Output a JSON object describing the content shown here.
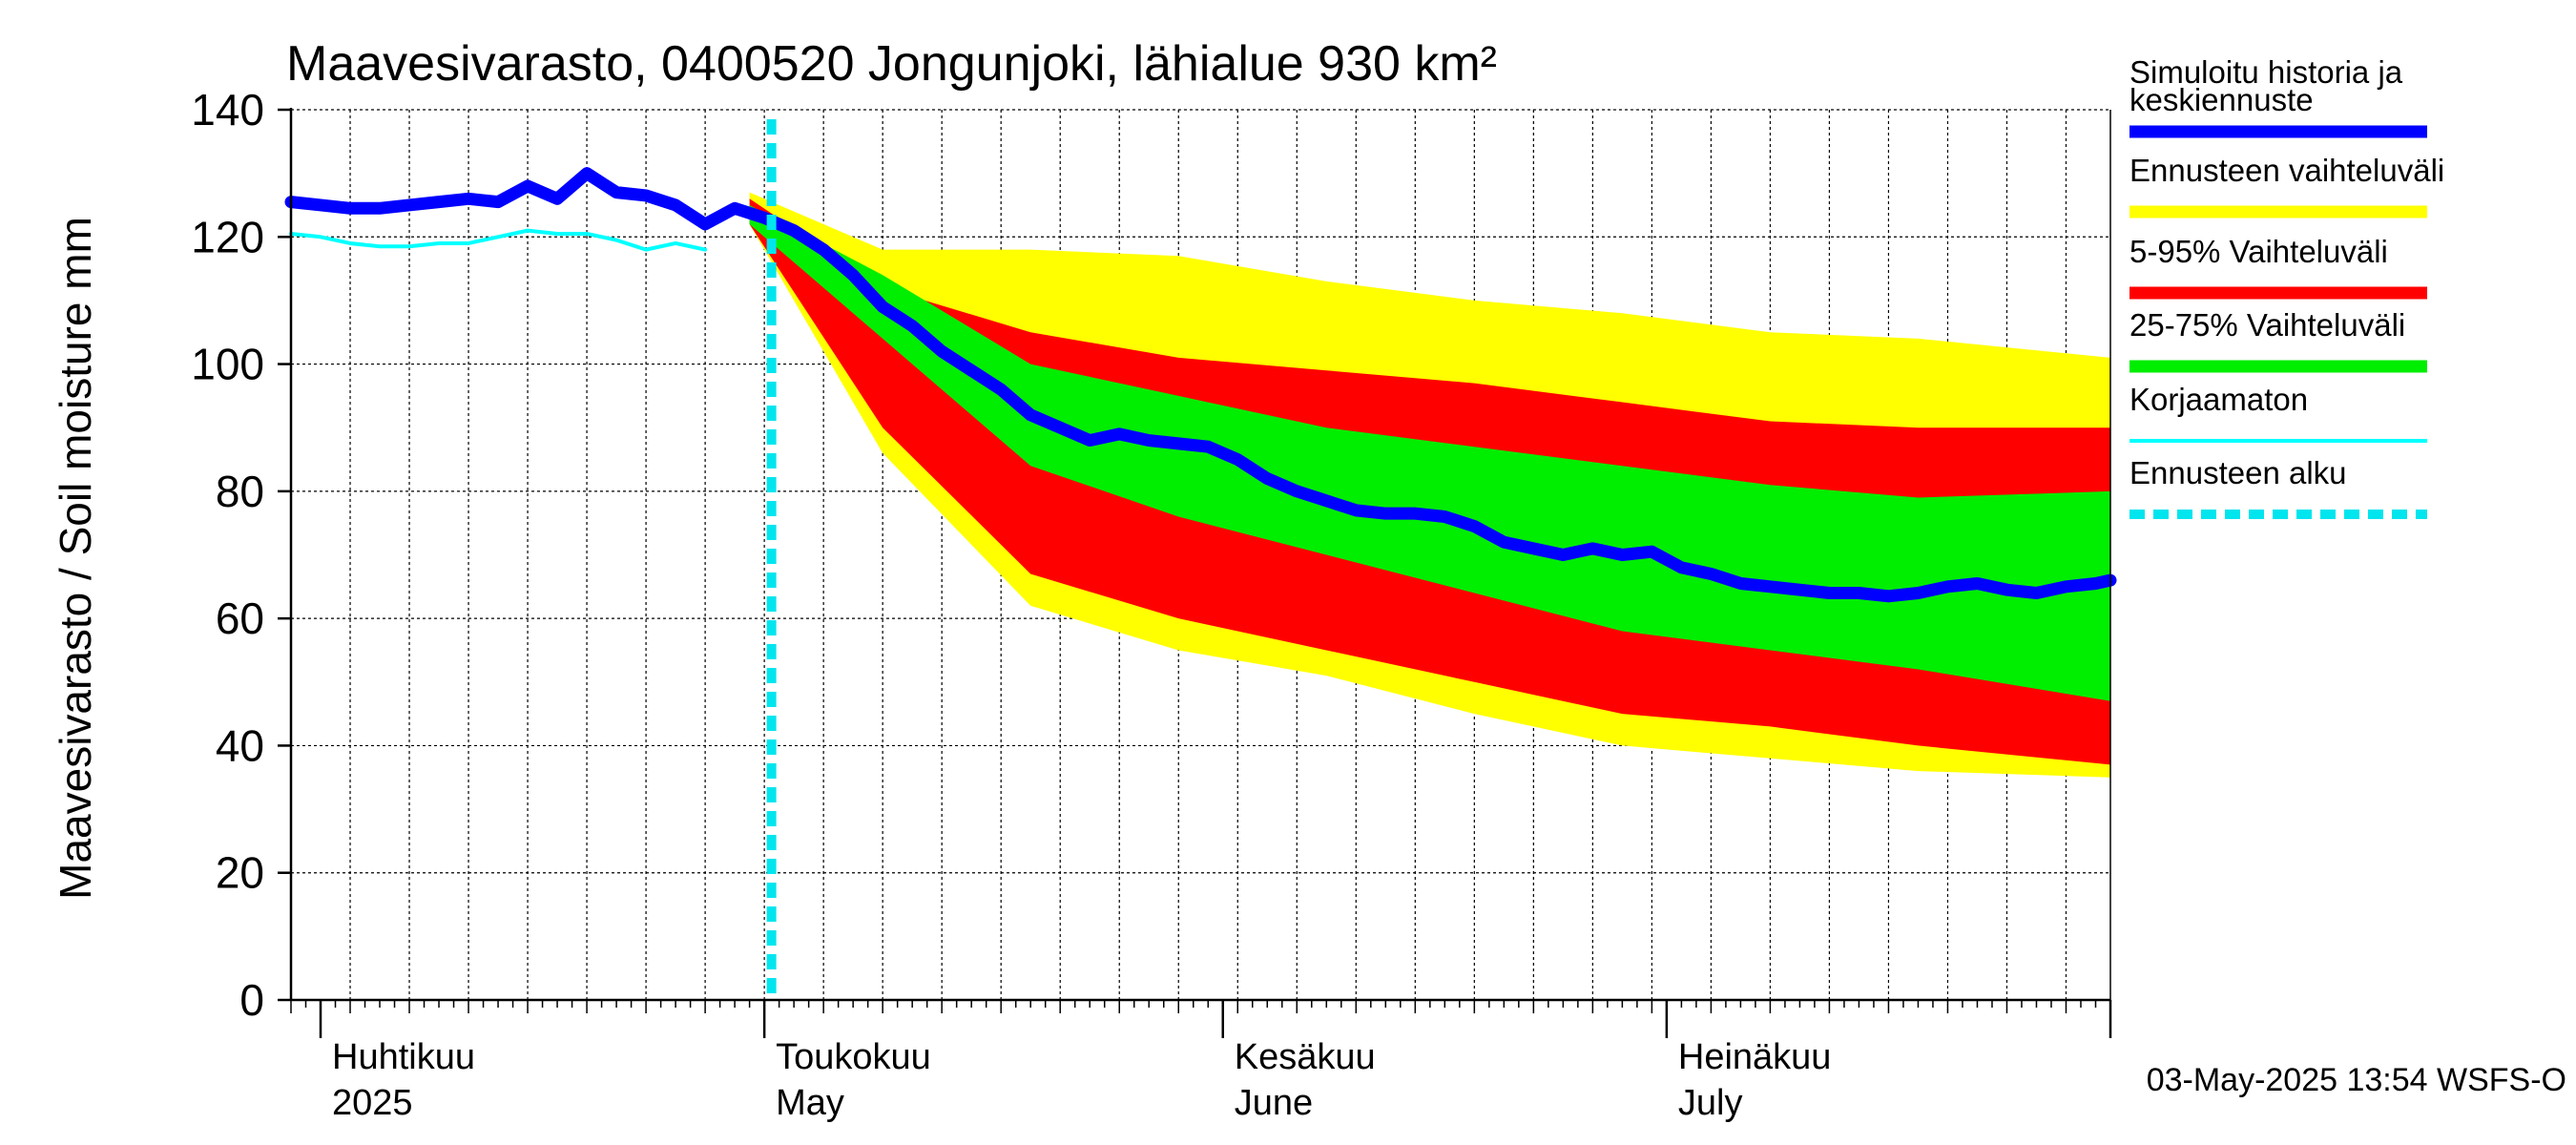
{
  "chart_data": {
    "type": "area",
    "title": "Maavesivarasto, 0400520 Jongunjoki, lähialue 930 km²",
    "ylabel": "Maavesivarasto / Soil moisture   mm",
    "ylim": [
      0,
      140
    ],
    "yticks": [
      0,
      20,
      40,
      60,
      80,
      100,
      120,
      140
    ],
    "x_start": "2025-03-30",
    "x_end": "2025-07-31",
    "forecast_start": "2025-05-02",
    "month_labels": [
      {
        "fi": "Huhtikuu",
        "en": "2025",
        "date": "2025-04-01"
      },
      {
        "fi": "Toukokuu",
        "en": "May",
        "date": "2025-05-01"
      },
      {
        "fi": "Kesäkuu",
        "en": "June",
        "date": "2025-06-01"
      },
      {
        "fi": "Heinäkuu",
        "en": "July",
        "date": "2025-07-01"
      }
    ],
    "series": [
      {
        "name": "Simuloitu historia ja keskiennuste",
        "color": "#0000ff",
        "day": [
          0,
          2,
          4,
          6,
          8,
          10,
          12,
          14,
          16,
          18,
          20,
          22,
          24,
          26,
          28,
          30,
          32,
          34,
          36,
          38,
          40,
          42,
          44,
          46,
          48,
          50,
          52,
          54,
          56,
          58,
          60,
          62,
          64,
          66,
          68,
          70,
          72,
          74,
          76,
          78,
          80,
          82,
          84,
          86,
          88,
          90,
          92,
          94,
          96,
          98,
          100,
          102,
          104,
          106,
          108,
          110,
          112,
          114,
          116,
          118,
          120,
          122,
          123
        ],
        "values": [
          125.5,
          125,
          124.5,
          124.5,
          125,
          125.5,
          126,
          125.5,
          128,
          126,
          130,
          127,
          126.5,
          125,
          122,
          124.5,
          123,
          121,
          118,
          114,
          109,
          106,
          102,
          99,
          96,
          92,
          90,
          88,
          89,
          88,
          87.5,
          87,
          85,
          82,
          80,
          78.5,
          77,
          76.5,
          76.5,
          76,
          74.5,
          72,
          71,
          70,
          71,
          70,
          70.5,
          68,
          67,
          65.5,
          65,
          64.5,
          64,
          64,
          63.5,
          64,
          65,
          65.5,
          64.5,
          64,
          65,
          65.5,
          66
        ]
      },
      {
        "name": "Korjaamaton",
        "color": "#00ffff",
        "day": [
          0,
          2,
          4,
          6,
          8,
          10,
          12,
          14,
          16,
          18,
          20,
          22,
          24,
          26,
          28
        ],
        "values": [
          120.5,
          120,
          119,
          118.5,
          118.5,
          119,
          119,
          120,
          121,
          120.5,
          120.5,
          119.5,
          118,
          119,
          118
        ]
      }
    ],
    "bands": [
      {
        "name": "Ennusteen vaihteluväli",
        "color": "#ffff00",
        "day": [
          31,
          40,
          50,
          60,
          70,
          80,
          90,
          100,
          110,
          123
        ],
        "upper": [
          127,
          118,
          118,
          117,
          113,
          110,
          108,
          105,
          104,
          101
        ],
        "lower": [
          122,
          86,
          62,
          55,
          51,
          45,
          40,
          38,
          36,
          35
        ]
      },
      {
        "name": "5-95% Vaihteluväli",
        "color": "#ff0000",
        "day": [
          31,
          40,
          50,
          60,
          70,
          80,
          90,
          100,
          110,
          123
        ],
        "upper": [
          126,
          112,
          105,
          101,
          99,
          97,
          94,
          91,
          90,
          90
        ],
        "lower": [
          122,
          90,
          67,
          60,
          55,
          50,
          45,
          43,
          40,
          37
        ]
      },
      {
        "name": "25-75% Vaihteluväli",
        "color": "#00ee00",
        "day": [
          31,
          40,
          50,
          60,
          70,
          80,
          90,
          100,
          110,
          123
        ],
        "upper": [
          125,
          114,
          100,
          95,
          90,
          87,
          84,
          81,
          79,
          80
        ],
        "lower": [
          122,
          104,
          84,
          76,
          70,
          64,
          58,
          55,
          52,
          47
        ]
      }
    ],
    "legend": [
      {
        "label": "Simuloitu historia ja keskiennuste",
        "color": "#0000ff",
        "style": "thick"
      },
      {
        "label": "Ennusteen vaihteluväli",
        "color": "#ffff00",
        "style": "thick"
      },
      {
        "label": "5-95% Vaihteluväli",
        "color": "#ff0000",
        "style": "thick"
      },
      {
        "label": "25-75% Vaihteluväli",
        "color": "#00ee00",
        "style": "thick"
      },
      {
        "label": "Korjaamaton",
        "color": "#00ffff",
        "style": "thin"
      },
      {
        "label": "Ennusteen alku",
        "color": "#00e5ee",
        "style": "dashed"
      }
    ],
    "footer": "03-May-2025 13:54 WSFS-O"
  }
}
